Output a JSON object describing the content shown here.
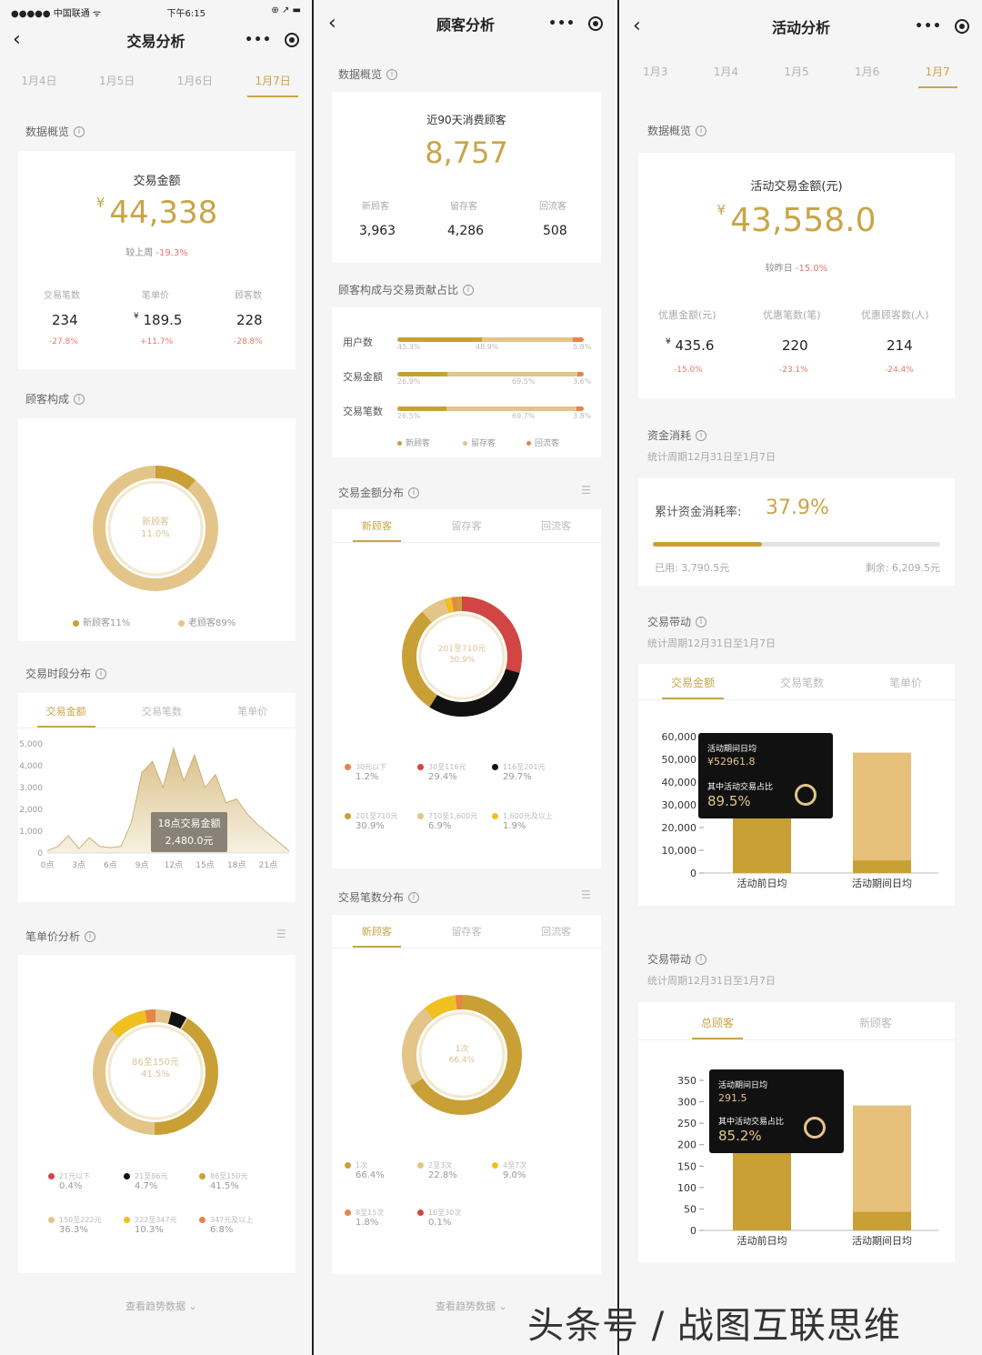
{
  "panel1": {
    "status": {
      "carrier": "●●●●● 中国联通 ᯤ",
      "time": "下午6:15",
      "icons": "⊕ ↗ ▬"
    },
    "title": "交易分析",
    "date_tabs": [
      {
        "label": "1月4日",
        "active": false
      },
      {
        "label": "1月5日",
        "active": false
      },
      {
        "label": "1月6日",
        "active": false
      },
      {
        "label": "1月7日",
        "active": true
      }
    ],
    "overview": {
      "section_title": "数据概览",
      "label": "交易金额",
      "currency": "¥",
      "value": "44,338",
      "compare": "较上周",
      "compare_value": "-19.3%",
      "metrics": [
        {
          "label": "交易笔数",
          "value": "234",
          "change": "-27.8%"
        },
        {
          "label": "笔单价",
          "value": "189.5",
          "prefix": "¥",
          "change": "+11.7%"
        },
        {
          "label": "顾客数",
          "value": "228",
          "change": "-28.8%"
        }
      ]
    },
    "customer_composition": {
      "section_title": "顾客构成",
      "center_label": "新顾客",
      "center_value": "11.0%",
      "slices": [
        11,
        89
      ],
      "colors": [
        "#c9a036",
        "#e3c58a"
      ],
      "legend": [
        "新顾客11%",
        "老顾客89%"
      ]
    },
    "time_distribution": {
      "section_title": "交易时段分布",
      "tabs": [
        {
          "label": "交易金额",
          "active": true
        },
        {
          "label": "交易笔数",
          "active": false
        },
        {
          "label": "笔单价",
          "active": false
        }
      ],
      "tooltip_title": "18点交易金额",
      "tooltip_value": "2,480.0元"
    },
    "price_analysis": {
      "section_title": "笔单价分析",
      "center_label": "86至150元",
      "center_value": "41.5%",
      "legend": [
        {
          "name": "21元以下",
          "value": "0.4%",
          "color": "#d24545"
        },
        {
          "name": "21至86元",
          "value": "4.7%",
          "color": "#111111"
        },
        {
          "name": "86至150元",
          "value": "41.5%",
          "color": "#c9a036"
        },
        {
          "name": "150至222元",
          "value": "36.3%",
          "color": "#e3c58a"
        },
        {
          "name": "222至347元",
          "value": "10.3%",
          "color": "#f0c020"
        },
        {
          "name": "347元及以上",
          "value": "6.8%",
          "color": "#e8834a"
        }
      ]
    },
    "trend_link": "查看趋势数据"
  },
  "panel2": {
    "title": "顾客分析",
    "overview": {
      "section_title": "数据概览",
      "label": "近90天消费顾客",
      "value": "8,757",
      "metrics": [
        {
          "label": "新顾客",
          "value": "3,963"
        },
        {
          "label": "留存客",
          "value": "4,286"
        },
        {
          "label": "回流客",
          "value": "508"
        }
      ]
    },
    "contribution": {
      "section_title": "顾客构成与交易贡献占比",
      "rows": [
        {
          "label": "用户数",
          "values": [
            "45.3%",
            "48.9%",
            "5.8%"
          ],
          "parts": [
            45.3,
            48.9,
            5.8
          ]
        },
        {
          "label": "交易金额",
          "values": [
            "26.9%",
            "69.5%",
            "3.6%"
          ],
          "parts": [
            26.9,
            69.5,
            3.6
          ]
        },
        {
          "label": "交易笔数",
          "values": [
            "26.5%",
            "69.7%",
            "3.8%"
          ],
          "parts": [
            26.5,
            69.7,
            3.8
          ]
        }
      ],
      "legend": [
        {
          "name": "新顾客",
          "color": "#c9a036"
        },
        {
          "name": "留存客",
          "color": "#e3c58a"
        },
        {
          "name": "回流客",
          "color": "#e8834a"
        }
      ]
    },
    "amount_distribution": {
      "section_title": "交易金额分布",
      "tabs": [
        {
          "label": "新顾客",
          "active": true
        },
        {
          "label": "留存客",
          "active": false
        },
        {
          "label": "回流客",
          "active": false
        }
      ],
      "center_label": "201至710元",
      "center_value": "30.9%",
      "legend": [
        {
          "name": "30元以下",
          "value": "1.2%",
          "color": "#e8834a"
        },
        {
          "name": "30至116元",
          "value": "29.4%",
          "color": "#d24545"
        },
        {
          "name": "116至201元",
          "value": "29.7%",
          "color": "#111111"
        },
        {
          "name": "201至710元",
          "value": "30.9%",
          "color": "#c9a036"
        },
        {
          "name": "710至1,600元",
          "value": "6.9%",
          "color": "#e3c58a"
        },
        {
          "name": "1,600元及以上",
          "value": "1.9%",
          "color": "#f0c020"
        }
      ]
    },
    "count_distribution": {
      "section_title": "交易笔数分布",
      "tabs": [
        {
          "label": "新顾客",
          "active": true
        },
        {
          "label": "留存客",
          "active": false
        },
        {
          "label": "回流客",
          "active": false
        }
      ],
      "center_label": "1次",
      "center_value": "66.4%",
      "legend": [
        {
          "name": "1次",
          "value": "66.4%",
          "color": "#c9a036"
        },
        {
          "name": "2至3次",
          "value": "22.8%",
          "color": "#e3c58a"
        },
        {
          "name": "4至7次",
          "value": "9.0%",
          "color": "#f0c020"
        },
        {
          "name": "8至15次",
          "value": "1.8%",
          "color": "#e8834a"
        },
        {
          "name": "16至30次",
          "value": "0.1%",
          "color": "#d24545"
        }
      ]
    },
    "trend_link": "查看趋势数据"
  },
  "panel3": {
    "title": "活动分析",
    "date_tabs": [
      {
        "label": "1月3",
        "active": false
      },
      {
        "label": "1月4",
        "active": false
      },
      {
        "label": "1月5",
        "active": false
      },
      {
        "label": "1月6",
        "active": false
      },
      {
        "label": "1月7",
        "active": true
      }
    ],
    "overview": {
      "section_title": "数据概览",
      "label": "活动交易金额(元)",
      "currency": "¥",
      "value": "43,558.0",
      "compare": "较昨日",
      "compare_value": "-15.0%",
      "metrics": [
        {
          "label": "优惠金额(元)",
          "value": "435.6",
          "prefix": "¥",
          "change": "-15.0%"
        },
        {
          "label": "优惠笔数(笔)",
          "value": "220",
          "change": "-23.1%"
        },
        {
          "label": "优惠顾客数(人)",
          "value": "214",
          "change": "-24.4%"
        }
      ]
    },
    "funds": {
      "section_title": "资金消耗",
      "period": "统计周期12月31日至1月7日",
      "rate_label": "累计资金消耗率:",
      "rate_value": "37.9%",
      "rate": 0.379,
      "used": "已用: 3,790.5元",
      "remaining": "剩余: 6,209.5元"
    },
    "drive1": {
      "section_title": "交易带动",
      "period": "统计周期12月31日至1月7日",
      "tabs": [
        {
          "label": "交易金额",
          "active": true
        },
        {
          "label": "交易笔数",
          "active": false
        },
        {
          "label": "笔单价",
          "active": false
        }
      ],
      "tooltip_title": "活动期间日均",
      "tooltip_value": "¥52961.8",
      "tooltip_sub": "其中活动交易占比",
      "tooltip_ratio": "89.5%"
    },
    "drive2": {
      "section_title": "交易带动",
      "period": "统计周期12月31日至1月7日",
      "tabs": [
        {
          "label": "总顾客",
          "active": true
        },
        {
          "label": "新顾客",
          "active": false
        }
      ],
      "tooltip_title": "活动期间日均",
      "tooltip_value": "291.5",
      "tooltip_sub": "其中活动交易占比",
      "tooltip_ratio": "85.2%"
    }
  },
  "watermark": "头条号 / 战图互联思维",
  "chart_data": [
    {
      "type": "area",
      "x_ticks": [
        "0点",
        "3点",
        "6点",
        "9点",
        "12点",
        "15点",
        "18点",
        "21点"
      ],
      "y_ticks": [
        "0",
        "1,000",
        "2,000",
        "3,000",
        "4,000",
        "5,000"
      ],
      "ylim": [
        0,
        5000
      ],
      "x": [
        0,
        1,
        2,
        3,
        4,
        5,
        6,
        7,
        8,
        9,
        10,
        11,
        12,
        13,
        14,
        15,
        16,
        17,
        18,
        19,
        20,
        21,
        22,
        23
      ],
      "values": [
        100,
        300,
        800,
        200,
        700,
        300,
        250,
        300,
        1400,
        3700,
        4200,
        3000,
        4800,
        3300,
        4500,
        3000,
        3600,
        2300,
        2480,
        1800,
        1300,
        900,
        500,
        100
      ]
    },
    {
      "type": "bar",
      "categories": [
        "活动前日均",
        "活动期间日均"
      ],
      "y_ticks": [
        "0",
        "10,000",
        "20,000",
        "30,000",
        "40,000",
        "50,000",
        "60,000"
      ],
      "ylim": [
        0,
        60000
      ],
      "values": [
        30000,
        52961.8
      ],
      "activity_share": [
        0,
        0.105
      ]
    },
    {
      "type": "bar",
      "categories": [
        "活动前日均",
        "活动期间日均"
      ],
      "y_ticks": [
        "0",
        "50",
        "100",
        "150",
        "200",
        "250",
        "300",
        "350"
      ],
      "ylim": [
        0,
        350
      ],
      "values": [
        195,
        291.5
      ],
      "activity_share": [
        0,
        0.148
      ]
    },
    {
      "type": "pie",
      "series": [
        {
          "name": "交易笔数分布",
          "values": [
            66.4,
            22.8,
            9.0,
            1.8,
            0.1
          ]
        }
      ]
    }
  ]
}
